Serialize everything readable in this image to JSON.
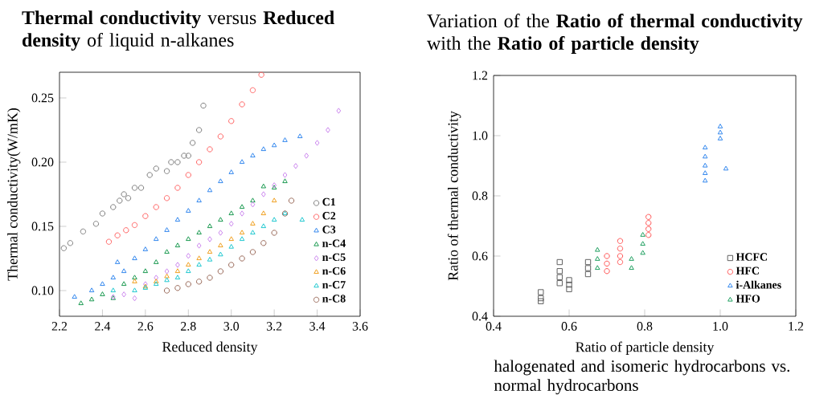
{
  "chart_data": [
    {
      "type": "scatter",
      "title": "**Thermal conductivity** versus **Reduced density** of liquid n-alkanes",
      "xlabel": "Reduced density",
      "ylabel": "Thermal conductivity(W/mK)",
      "xlim": [
        2.2,
        3.6
      ],
      "ylim": [
        0.08,
        0.27
      ],
      "xticks": [
        {
          "value": 2.2,
          "label": "2.2"
        },
        {
          "value": 2.4,
          "label": "2.4"
        },
        {
          "value": 2.6,
          "label": "2.6"
        },
        {
          "value": 2.8,
          "label": "2.8"
        },
        {
          "value": 3.0,
          "label": "3.0"
        },
        {
          "value": 3.2,
          "label": "3.2"
        },
        {
          "value": 3.4,
          "label": "3.4"
        },
        {
          "value": 3.6,
          "label": "3.6"
        }
      ],
      "yticks": [
        {
          "value": 0.1,
          "label": "0.10"
        },
        {
          "value": 0.15,
          "label": "0.15"
        },
        {
          "value": 0.2,
          "label": "0.20"
        },
        {
          "value": 0.25,
          "label": "0.25"
        }
      ],
      "legend": "bottom right",
      "series": [
        {
          "name": "C1",
          "color": "#808080",
          "marker": "circle",
          "x": [
            2.22,
            2.25,
            2.31,
            2.37,
            2.4,
            2.45,
            2.48,
            2.5,
            2.52,
            2.55,
            2.58,
            2.62,
            2.65,
            2.7,
            2.72,
            2.75,
            2.78,
            2.8,
            2.82,
            2.85,
            2.87
          ],
          "values": [
            0.133,
            0.137,
            0.146,
            0.152,
            0.16,
            0.165,
            0.17,
            0.175,
            0.172,
            0.18,
            0.18,
            0.19,
            0.195,
            0.193,
            0.2,
            0.2,
            0.205,
            0.205,
            0.215,
            0.225,
            0.244
          ]
        },
        {
          "name": "C2",
          "color": "#ff6666",
          "marker": "circle",
          "x": [
            2.43,
            2.47,
            2.51,
            2.55,
            2.6,
            2.65,
            2.7,
            2.75,
            2.8,
            2.85,
            2.9,
            2.95,
            3.0,
            3.05,
            3.1,
            3.14
          ],
          "values": [
            0.138,
            0.143,
            0.147,
            0.151,
            0.158,
            0.165,
            0.172,
            0.18,
            0.19,
            0.2,
            0.21,
            0.22,
            0.232,
            0.245,
            0.256,
            0.268
          ]
        },
        {
          "name": "C3",
          "color": "#3388ee",
          "marker": "triangle",
          "x": [
            2.27,
            2.35,
            2.4,
            2.45,
            2.47,
            2.5,
            2.55,
            2.6,
            2.65,
            2.7,
            2.75,
            2.8,
            2.85,
            2.9,
            2.95,
            3.0,
            3.05,
            3.1,
            3.15,
            3.2,
            3.25,
            3.32
          ],
          "values": [
            0.095,
            0.1,
            0.105,
            0.11,
            0.122,
            0.115,
            0.125,
            0.132,
            0.14,
            0.147,
            0.155,
            0.162,
            0.17,
            0.178,
            0.185,
            0.192,
            0.2,
            0.205,
            0.21,
            0.213,
            0.217,
            0.22
          ]
        },
        {
          "name": "n-C4",
          "color": "#1a9a50",
          "marker": "triangle",
          "x": [
            2.3,
            2.35,
            2.4,
            2.45,
            2.5,
            2.55,
            2.6,
            2.65,
            2.7,
            2.75,
            2.8,
            2.85,
            2.9,
            2.95,
            3.0,
            3.05,
            3.1,
            3.15,
            3.2,
            3.25
          ],
          "values": [
            0.09,
            0.093,
            0.097,
            0.094,
            0.105,
            0.11,
            0.115,
            0.122,
            0.13,
            0.135,
            0.14,
            0.145,
            0.15,
            0.155,
            0.16,
            0.165,
            0.17,
            0.181,
            0.18,
            0.185
          ]
        },
        {
          "name": "n-C5",
          "color": "#cc88ee",
          "marker": "diamond",
          "x": [
            2.45,
            2.5,
            2.55,
            2.6,
            2.65,
            2.7,
            2.75,
            2.8,
            2.85,
            2.9,
            2.95,
            3.0,
            3.05,
            3.1,
            3.15,
            3.2,
            3.25,
            3.3,
            3.35,
            3.4,
            3.45,
            3.5
          ],
          "values": [
            0.095,
            0.097,
            0.094,
            0.105,
            0.11,
            0.115,
            0.12,
            0.127,
            0.135,
            0.14,
            0.145,
            0.152,
            0.16,
            0.167,
            0.175,
            0.182,
            0.19,
            0.197,
            0.205,
            0.215,
            0.225,
            0.24
          ]
        },
        {
          "name": "n-C6",
          "color": "#f0a020",
          "marker": "triangle",
          "x": [
            2.55,
            2.6,
            2.65,
            2.7,
            2.75,
            2.8,
            2.85,
            2.9,
            2.95,
            3.0,
            3.05,
            3.1,
            3.15,
            3.2
          ],
          "values": [
            0.107,
            0.103,
            0.107,
            0.111,
            0.115,
            0.12,
            0.125,
            0.13,
            0.135,
            0.14,
            0.145,
            0.152,
            0.16,
            0.17
          ]
        },
        {
          "name": "n-C7",
          "color": "#20c8d0",
          "marker": "triangle",
          "x": [
            2.45,
            2.55,
            2.6,
            2.65,
            2.7,
            2.75,
            2.8,
            2.85,
            2.9,
            2.95,
            3.0,
            3.05,
            3.1,
            3.15,
            3.2,
            3.25,
            3.33
          ],
          "values": [
            0.1,
            0.1,
            0.102,
            0.105,
            0.108,
            0.11,
            0.115,
            0.12,
            0.124,
            0.128,
            0.134,
            0.14,
            0.145,
            0.15,
            0.155,
            0.16,
            0.155
          ]
        },
        {
          "name": "n-C8",
          "color": "#9a6a5a",
          "marker": "circle",
          "x": [
            2.7,
            2.75,
            2.8,
            2.85,
            2.9,
            2.95,
            3.0,
            3.05,
            3.1,
            3.15,
            3.2,
            3.25,
            3.28
          ],
          "values": [
            0.1,
            0.102,
            0.105,
            0.107,
            0.11,
            0.115,
            0.12,
            0.125,
            0.13,
            0.137,
            0.145,
            0.16,
            0.17
          ]
        }
      ]
    },
    {
      "type": "scatter",
      "title": "Variation of the **Ratio of thermal conductivity** with the **Ratio of particle density**",
      "xlabel": "Ratio of particle density",
      "ylabel": "Ratio of thermal conductivity",
      "xlim": [
        0.4,
        1.2
      ],
      "ylim": [
        0.4,
        1.2
      ],
      "xticks": [
        {
          "value": 0.4,
          "label": "0.4"
        },
        {
          "value": 0.6,
          "label": "0.6"
        },
        {
          "value": 0.8,
          "label": "0.8"
        },
        {
          "value": 1.0,
          "label": "1.0"
        },
        {
          "value": 1.2,
          "label": "1.2"
        }
      ],
      "yticks": [
        {
          "value": 0.4,
          "label": "0.4"
        },
        {
          "value": 0.6,
          "label": "0.6"
        },
        {
          "value": 0.8,
          "label": "0.8"
        },
        {
          "value": 1.0,
          "label": "1.0"
        },
        {
          "value": 1.2,
          "label": "1.2"
        }
      ],
      "legend": "bottom right",
      "annotations": [
        "halogenated and isomeric hydrocarbons vs. normal hydrocarbons"
      ],
      "series": [
        {
          "name": "HCFC",
          "color": "#606060",
          "marker": "square",
          "x": [
            0.525,
            0.525,
            0.525,
            0.575,
            0.575,
            0.575,
            0.575,
            0.6,
            0.6,
            0.6,
            0.65,
            0.65,
            0.65
          ],
          "values": [
            0.45,
            0.46,
            0.48,
            0.51,
            0.53,
            0.55,
            0.58,
            0.49,
            0.505,
            0.52,
            0.54,
            0.56,
            0.58
          ]
        },
        {
          "name": "HFC",
          "color": "#ff5555",
          "marker": "circle",
          "x": [
            0.7,
            0.7,
            0.7,
            0.735,
            0.735,
            0.735,
            0.735,
            0.81,
            0.81,
            0.81,
            0.81
          ],
          "values": [
            0.55,
            0.575,
            0.6,
            0.58,
            0.6,
            0.625,
            0.65,
            0.67,
            0.69,
            0.71,
            0.73
          ]
        },
        {
          "name": "i-Alkanes",
          "color": "#3388ee",
          "marker": "triangle",
          "x": [
            0.96,
            0.96,
            0.96,
            0.96,
            0.96,
            1.0,
            1.0,
            1.0,
            1.015
          ],
          "values": [
            0.85,
            0.875,
            0.9,
            0.93,
            0.96,
            0.99,
            1.01,
            1.03,
            0.89
          ]
        },
        {
          "name": "HFO",
          "color": "#20a060",
          "marker": "triangle",
          "x": [
            0.675,
            0.675,
            0.675,
            0.765,
            0.765,
            0.795,
            0.795,
            0.795
          ],
          "values": [
            0.56,
            0.59,
            0.62,
            0.56,
            0.59,
            0.61,
            0.64,
            0.67
          ]
        }
      ]
    }
  ]
}
